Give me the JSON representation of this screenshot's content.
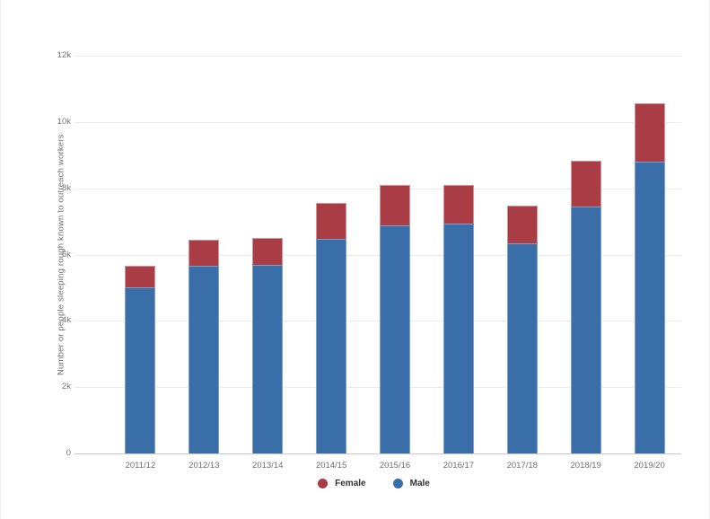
{
  "page": {
    "background": "#ffffff"
  },
  "chart_data": {
    "type": "bar",
    "stacked": true,
    "title": "",
    "xlabel": "",
    "ylabel": "Number or people sleeping rough known to outreach workers",
    "categories": [
      "2011/12",
      "2012/13",
      "2013/14",
      "2014/15",
      "2015/16",
      "2016/17",
      "2017/18",
      "2018/19",
      "2019/20"
    ],
    "series": [
      {
        "name": "Male",
        "color": "#3a6ea8",
        "values": [
          5000,
          5650,
          5700,
          6480,
          6890,
          6930,
          6350,
          7440,
          8810
        ]
      },
      {
        "name": "Female",
        "color": "#aa3c46",
        "values": [
          660,
          800,
          800,
          1080,
          1200,
          1180,
          1130,
          1400,
          1750
        ]
      }
    ],
    "legend": [
      {
        "label": "Female",
        "color": "#aa3c46"
      },
      {
        "label": "Male",
        "color": "#3a6ea8"
      }
    ],
    "legend_position": "bottom",
    "grid": true,
    "ylim": [
      0,
      12000
    ],
    "yticks": [
      {
        "label": "12k",
        "value": 12000
      },
      {
        "label": "10k",
        "value": 10000
      },
      {
        "label": "8k",
        "value": 8000
      },
      {
        "label": "6k",
        "value": 6000
      },
      {
        "label": "4k",
        "value": 4000
      },
      {
        "label": "2k",
        "value": 2000
      },
      {
        "label": "0",
        "value": 0
      }
    ],
    "colors": {
      "grid": "#ececec",
      "axis": "#c9c9c9",
      "tick_text": "#757575",
      "axis_title_text": "#6b6b6b",
      "legend_text": "#333333"
    }
  }
}
